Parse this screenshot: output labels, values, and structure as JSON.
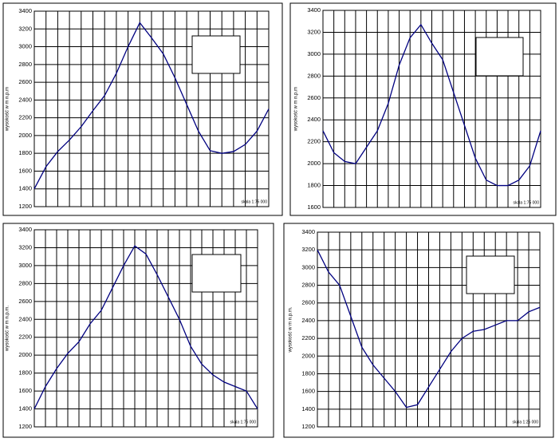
{
  "chart_data": [
    {
      "type": "line",
      "y_label": "wysokość w m n.p.m",
      "annotation": "skala 1:75 000",
      "color": "#000080",
      "grid": true,
      "ylim": [
        1200,
        3400
      ],
      "yticks": [
        1200,
        1400,
        1600,
        1800,
        2000,
        2200,
        2400,
        2600,
        2800,
        3000,
        3200,
        3400
      ],
      "values": [
        1400,
        1650,
        1820,
        1950,
        2100,
        2280,
        2450,
        2700,
        3000,
        3270,
        3100,
        2920,
        2650,
        2350,
        2050,
        1830,
        1800,
        1820,
        1900,
        2050,
        2300
      ]
    },
    {
      "type": "line",
      "y_label": "wysokość w m n.p.m",
      "annotation": "skala 1:75 000",
      "color": "#000080",
      "grid": true,
      "ylim": [
        1600,
        3400
      ],
      "yticks": [
        1600,
        1800,
        2000,
        2200,
        2400,
        2600,
        2800,
        3000,
        3200,
        3400
      ],
      "values": [
        2300,
        2100,
        2020,
        2000,
        2150,
        2300,
        2550,
        2900,
        3150,
        3270,
        3100,
        2950,
        2650,
        2350,
        2050,
        1850,
        1800,
        1800,
        1850,
        1980,
        2300
      ]
    },
    {
      "type": "line",
      "y_label": "wysokość w m n.p.m.",
      "annotation": "skala 1:75 000",
      "color": "#000080",
      "grid": true,
      "ylim": [
        1200,
        3400
      ],
      "yticks": [
        1200,
        1400,
        1600,
        1800,
        2000,
        2200,
        2400,
        2600,
        2800,
        3000,
        3200,
        3400
      ],
      "values": [
        1400,
        1650,
        1850,
        2020,
        2150,
        2350,
        2500,
        2750,
        3000,
        3220,
        3130,
        2900,
        2650,
        2400,
        2100,
        1900,
        1780,
        1700,
        1650,
        1600,
        1400
      ]
    },
    {
      "type": "line",
      "y_label": "wysokość w m n.p.m.",
      "annotation": "skala 1:25 000",
      "color": "#000080",
      "grid": true,
      "ylim": [
        1200,
        3400
      ],
      "yticks": [
        1200,
        1400,
        1600,
        1800,
        2000,
        2200,
        2400,
        2600,
        2800,
        3000,
        3200,
        3400
      ],
      "values": [
        3200,
        2950,
        2800,
        2450,
        2100,
        1900,
        1750,
        1600,
        1420,
        1450,
        1650,
        1850,
        2050,
        2200,
        2280,
        2300,
        2350,
        2400,
        2400,
        2500,
        2550
      ]
    }
  ]
}
